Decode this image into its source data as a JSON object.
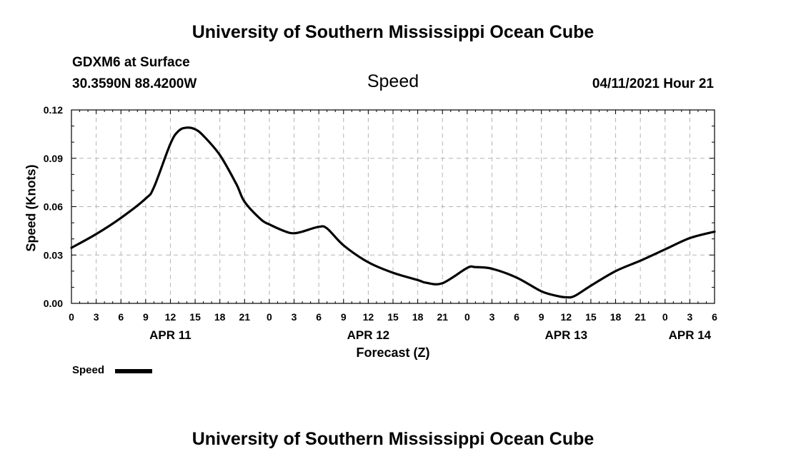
{
  "header": {
    "title": "University of Southern Mississippi Ocean Cube",
    "station": "GDXM6 at Surface",
    "coords": "30.3590N  88.4200W",
    "variable": "Speed",
    "datetime": "04/11/2021 Hour 21"
  },
  "footer": {
    "title": "University of Southern Mississippi Ocean Cube"
  },
  "legend": {
    "label": "Speed"
  },
  "chart_data": {
    "type": "line",
    "title": "Speed",
    "xlabel": "Forecast (Z)",
    "ylabel": "Speed (Knots)",
    "xlim": [
      0,
      78
    ],
    "ylim": [
      0,
      0.12
    ],
    "grid": true,
    "legend_position": "bottom-left",
    "x_ticks": [
      0,
      3,
      6,
      9,
      12,
      15,
      18,
      21,
      24,
      27,
      30,
      33,
      36,
      39,
      42,
      45,
      48,
      51,
      54,
      57,
      60,
      63,
      66,
      69,
      72,
      75,
      78
    ],
    "x_tick_labels": [
      "0",
      "3",
      "6",
      "9",
      "12",
      "15",
      "18",
      "21",
      "0",
      "3",
      "6",
      "9",
      "12",
      "15",
      "18",
      "21",
      "0",
      "3",
      "6",
      "9",
      "12",
      "15",
      "18",
      "21",
      "0",
      "3",
      "6"
    ],
    "y_ticks": [
      0,
      0.03,
      0.06,
      0.09,
      0.12
    ],
    "y_tick_labels": [
      "0.00",
      "0.03",
      "0.06",
      "0.09",
      "0.12"
    ],
    "date_labels": [
      {
        "label": "APR 11",
        "x": 12
      },
      {
        "label": "APR 12",
        "x": 36
      },
      {
        "label": "APR 13",
        "x": 60
      },
      {
        "label": "APR 14",
        "x": 75
      }
    ],
    "series": [
      {
        "name": "Speed",
        "color": "#000000",
        "x": [
          0,
          3,
          6,
          9,
          10,
          12,
          13,
          14,
          15,
          16,
          18,
          20,
          21,
          23,
          24,
          26,
          27,
          28,
          30,
          31,
          33,
          36,
          39,
          42,
          43,
          45,
          48,
          49,
          51,
          54,
          57,
          59,
          60,
          61,
          63,
          66,
          69,
          72,
          75,
          78
        ],
        "y": [
          0.0345,
          0.043,
          0.053,
          0.065,
          0.072,
          0.099,
          0.107,
          0.109,
          0.108,
          0.104,
          0.092,
          0.074,
          0.063,
          0.052,
          0.049,
          0.0445,
          0.0435,
          0.0445,
          0.0475,
          0.0465,
          0.036,
          0.0255,
          0.019,
          0.0145,
          0.0128,
          0.0125,
          0.022,
          0.0225,
          0.0215,
          0.016,
          0.0075,
          0.0045,
          0.0038,
          0.0045,
          0.011,
          0.02,
          0.0265,
          0.0335,
          0.0405,
          0.0445
        ]
      }
    ]
  }
}
